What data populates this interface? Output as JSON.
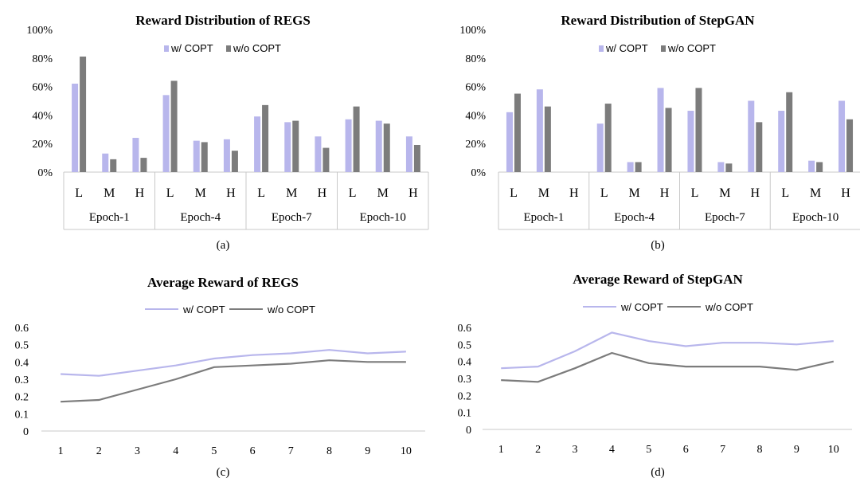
{
  "colors": {
    "with": "#b8b6ec",
    "without": "#7c7c7c",
    "axis": "#c8c8c8"
  },
  "chart_data": [
    {
      "type": "bar",
      "title": "Reward Distribution of REGS",
      "caption": "(a)",
      "legend": [
        "w/ COPT",
        "w/o COPT"
      ],
      "categories": [
        "L",
        "M",
        "H",
        "L",
        "M",
        "H",
        "L",
        "M",
        "H",
        "L",
        "M",
        "H"
      ],
      "groups": [
        "Epoch-1",
        "Epoch-4",
        "Epoch-7",
        "Epoch-10"
      ],
      "yticks": [
        "0%",
        "20%",
        "40%",
        "60%",
        "80%",
        "100%"
      ],
      "ylim": [
        0,
        100
      ],
      "series": [
        {
          "name": "w/ COPT",
          "values": [
            62,
            13,
            24,
            54,
            22,
            23,
            39,
            35,
            25,
            37,
            36,
            25
          ]
        },
        {
          "name": "w/o COPT",
          "values": [
            81,
            9,
            10,
            64,
            21,
            15,
            47,
            36,
            17,
            46,
            34,
            19
          ]
        }
      ]
    },
    {
      "type": "bar",
      "title": "Reward Distribution of StepGAN",
      "caption": "(b)",
      "legend": [
        "w/ COPT",
        "w/o COPT"
      ],
      "categories": [
        "L",
        "M",
        "H",
        "L",
        "M",
        "H",
        "L",
        "M",
        "H",
        "L",
        "M",
        "H"
      ],
      "groups": [
        "Epoch-1",
        "Epoch-4",
        "Epoch-7",
        "Epoch-10"
      ],
      "yticks": [
        "0%",
        "20%",
        "40%",
        "60%",
        "80%",
        "100%"
      ],
      "ylim": [
        0,
        100
      ],
      "series": [
        {
          "name": "w/ COPT",
          "values": [
            42,
            58,
            0,
            34,
            7,
            59,
            43,
            7,
            50,
            43,
            8,
            50
          ]
        },
        {
          "name": "w/o COPT",
          "values": [
            55,
            46,
            0,
            48,
            7,
            45,
            59,
            6,
            35,
            56,
            7,
            37
          ]
        }
      ]
    },
    {
      "type": "line",
      "title": "Average Reward of REGS",
      "caption": "(c)",
      "legend": [
        "w/ COPT",
        "w/o COPT"
      ],
      "x": [
        "1",
        "2",
        "3",
        "4",
        "5",
        "6",
        "7",
        "8",
        "9",
        "10"
      ],
      "yticks": [
        "0",
        "0.1",
        "0.2",
        "0.3",
        "0.4",
        "0.5",
        "0.6"
      ],
      "ylim": [
        0,
        0.6
      ],
      "series": [
        {
          "name": "w/ COPT",
          "values": [
            0.33,
            0.32,
            0.35,
            0.38,
            0.42,
            0.44,
            0.45,
            0.47,
            0.45,
            0.46
          ]
        },
        {
          "name": "w/o COPT",
          "values": [
            0.17,
            0.18,
            0.24,
            0.3,
            0.37,
            0.38,
            0.39,
            0.41,
            0.4,
            0.4
          ]
        }
      ]
    },
    {
      "type": "line",
      "title": "Average Reward of StepGAN",
      "caption": "(d)",
      "legend": [
        "w/ COPT",
        "w/o COPT"
      ],
      "x": [
        "1",
        "2",
        "3",
        "4",
        "5",
        "6",
        "7",
        "8",
        "9",
        "10"
      ],
      "yticks": [
        "0",
        "0.1",
        "0.2",
        "0.3",
        "0.4",
        "0.5",
        "0.6"
      ],
      "ylim": [
        0,
        0.6
      ],
      "series": [
        {
          "name": "w/ COPT",
          "values": [
            0.36,
            0.37,
            0.46,
            0.57,
            0.52,
            0.49,
            0.51,
            0.51,
            0.5,
            0.52
          ]
        },
        {
          "name": "w/o COPT",
          "values": [
            0.29,
            0.28,
            0.36,
            0.45,
            0.39,
            0.37,
            0.37,
            0.37,
            0.35,
            0.4
          ]
        }
      ]
    }
  ]
}
